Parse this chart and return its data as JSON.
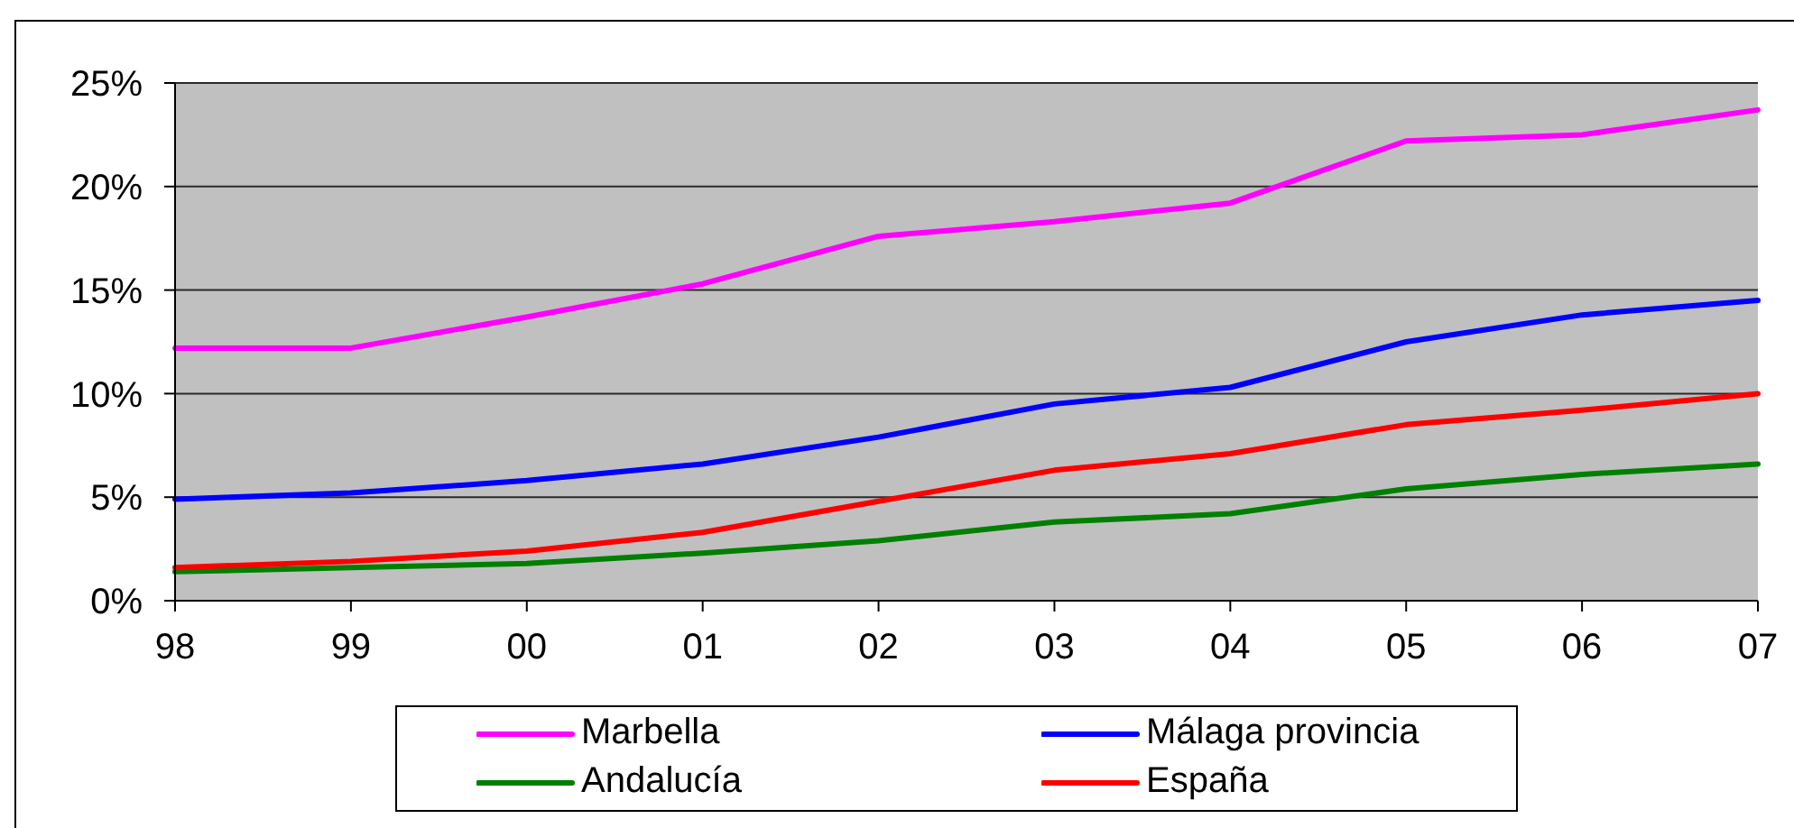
{
  "chart_data": {
    "type": "line",
    "categories": [
      "98",
      "99",
      "00",
      "01",
      "02",
      "03",
      "04",
      "05",
      "06",
      "07"
    ],
    "series": [
      {
        "name": "Marbella",
        "color": "#ff00ff",
        "values": [
          12.2,
          12.2,
          13.7,
          15.3,
          17.6,
          18.3,
          19.2,
          22.2,
          22.5,
          23.7
        ]
      },
      {
        "name": "Málaga provincia",
        "color": "#0000ff",
        "values": [
          4.9,
          5.2,
          5.8,
          6.6,
          7.9,
          9.5,
          10.3,
          12.5,
          13.8,
          14.5
        ]
      },
      {
        "name": "Andalucía",
        "color": "#008000",
        "values": [
          1.4,
          1.6,
          1.8,
          2.3,
          2.9,
          3.8,
          4.2,
          5.4,
          6.1,
          6.6
        ]
      },
      {
        "name": "España",
        "color": "#ff0000",
        "values": [
          1.6,
          1.9,
          2.4,
          3.3,
          4.8,
          6.3,
          7.1,
          8.5,
          9.2,
          10.0
        ]
      }
    ],
    "ylim": [
      0,
      25
    ],
    "yticks": [
      {
        "value": 0,
        "label": "0%"
      },
      {
        "value": 5,
        "label": "5%"
      },
      {
        "value": 10,
        "label": "10%"
      },
      {
        "value": 15,
        "label": "15%"
      },
      {
        "value": 20,
        "label": "20%"
      },
      {
        "value": 25,
        "label": "25%"
      }
    ],
    "grid": "y",
    "legend": "bottom",
    "marker": "none",
    "line_style": "solid"
  }
}
